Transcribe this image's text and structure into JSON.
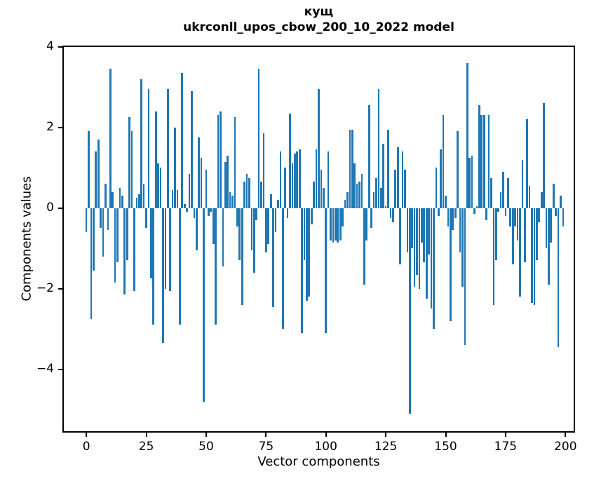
{
  "figure": {
    "title_line1": "кущ",
    "title_line2": "ukrconll_upos_cbow_200_10_2022 model",
    "xlabel": "Vector components",
    "ylabel": "Components values"
  },
  "chart_data": {
    "type": "bar",
    "title": "кущ — ukrconll_upos_cbow_200_10_2022 model",
    "xlabel": "Vector components",
    "ylabel": "Components values",
    "bar_color": "#1f77b4",
    "grid": false,
    "legend_position": "none",
    "x_ticks": [
      0,
      25,
      50,
      75,
      100,
      125,
      150,
      175,
      200
    ],
    "y_ticks": [
      -4,
      -2,
      0,
      2,
      4
    ],
    "xlim": [
      -10,
      204
    ],
    "ylim": [
      -5.57,
      4.03
    ],
    "values": [
      -0.6,
      1.9,
      -2.75,
      -1.55,
      1.4,
      1.7,
      -0.5,
      -1.2,
      0.6,
      -0.55,
      3.45,
      0.4,
      -1.85,
      -1.35,
      0.5,
      0.3,
      -2.15,
      -1.3,
      2.25,
      1.9,
      -2.05,
      0.25,
      0.35,
      3.2,
      0.6,
      -0.5,
      2.95,
      -1.75,
      -2.9,
      2.4,
      1.1,
      1.0,
      -3.35,
      -2.0,
      2.95,
      -2.05,
      0.45,
      2.0,
      0.45,
      -2.9,
      3.35,
      0.1,
      -0.1,
      0.85,
      2.9,
      -0.25,
      -1.05,
      1.75,
      1.25,
      -4.8,
      0.95,
      -0.2,
      -0.1,
      -0.9,
      -2.9,
      2.3,
      2.4,
      -1.45,
      1.15,
      1.3,
      0.4,
      0.3,
      2.25,
      -0.45,
      -1.3,
      -2.4,
      0.65,
      0.85,
      0.75,
      -1.05,
      -1.6,
      -0.3,
      3.45,
      0.65,
      1.85,
      -1.1,
      -0.9,
      0.35,
      -2.45,
      -0.6,
      0.2,
      1.4,
      -3.0,
      1.0,
      -0.25,
      2.35,
      1.1,
      1.35,
      1.4,
      1.45,
      -3.1,
      -1.3,
      -2.3,
      -2.2,
      -0.4,
      0.65,
      1.45,
      2.95,
      0.95,
      0.5,
      -3.1,
      1.4,
      -0.8,
      -0.85,
      -0.8,
      -0.85,
      -0.8,
      -0.45,
      0.2,
      0.4,
      1.95,
      1.95,
      1.1,
      0.6,
      0.65,
      0.85,
      -1.9,
      -0.8,
      2.55,
      -0.5,
      0.4,
      0.75,
      2.95,
      0.5,
      1.6,
      0.05,
      1.95,
      -0.25,
      -0.35,
      0.95,
      1.5,
      -1.4,
      1.4,
      0.95,
      -1.1,
      -5.1,
      -1.0,
      -1.95,
      -1.65,
      -2.0,
      -0.85,
      -1.35,
      -2.25,
      -1.15,
      -2.5,
      -3.0,
      1.0,
      -0.2,
      1.45,
      2.3,
      0.3,
      -0.45,
      -2.8,
      -0.55,
      -0.25,
      1.9,
      -1.1,
      -1.95,
      -3.4,
      3.6,
      1.25,
      1.3,
      -0.15,
      0.05,
      2.55,
      2.3,
      2.3,
      -0.3,
      2.3,
      0.75,
      -2.4,
      -1.3,
      -0.1,
      0.4,
      0.9,
      -0.2,
      0.75,
      -0.45,
      -1.4,
      -0.45,
      -0.8,
      -2.2,
      1.2,
      -1.35,
      2.2,
      0.55,
      -2.35,
      -2.4,
      -1.3,
      -0.35,
      0.4,
      2.6,
      -1.0,
      -1.9,
      -0.85,
      0.6,
      -0.2,
      -3.45,
      0.3,
      -0.45
    ]
  }
}
